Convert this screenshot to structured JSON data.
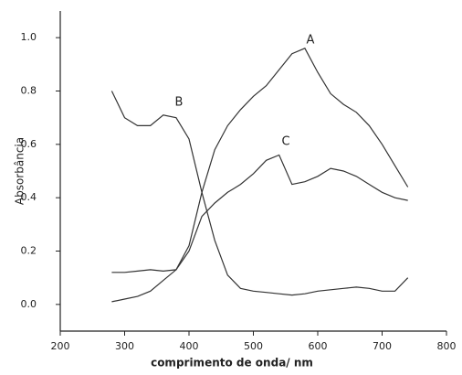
{
  "chart_data": {
    "type": "line",
    "xlabel": "comprimento de onda/ nm",
    "ylabel": "Absorbância",
    "x": [
      280,
      300,
      320,
      340,
      360,
      380,
      400,
      420,
      440,
      460,
      480,
      500,
      520,
      540,
      560,
      580,
      600,
      620,
      640,
      660,
      680,
      700,
      720,
      740
    ],
    "series": [
      {
        "name": "A",
        "color": "#333333",
        "values": [
          0.01,
          0.02,
          0.03,
          0.05,
          0.09,
          0.13,
          0.22,
          0.42,
          0.58,
          0.67,
          0.73,
          0.78,
          0.82,
          0.88,
          0.94,
          0.96,
          0.87,
          0.79,
          0.75,
          0.72,
          0.67,
          0.6,
          0.52,
          0.44
        ]
      },
      {
        "name": "B",
        "color": "#333333",
        "values": [
          0.8,
          0.7,
          0.67,
          0.67,
          0.71,
          0.7,
          0.62,
          0.42,
          0.24,
          0.11,
          0.06,
          0.05,
          0.045,
          0.04,
          0.035,
          0.04,
          0.05,
          0.055,
          0.06,
          0.065,
          0.06,
          0.05,
          0.05,
          0.1
        ]
      },
      {
        "name": "C",
        "color": "#333333",
        "values": [
          0.12,
          0.12,
          0.125,
          0.13,
          0.125,
          0.13,
          0.2,
          0.33,
          0.38,
          0.42,
          0.45,
          0.49,
          0.54,
          0.56,
          0.45,
          0.46,
          0.48,
          0.51,
          0.5,
          0.48,
          0.45,
          0.42,
          0.4,
          0.39
        ]
      }
    ],
    "xlim": [
      200,
      800
    ],
    "xticks": [
      200,
      300,
      400,
      500,
      600,
      700,
      800
    ],
    "ylim": [
      -0.1,
      1.1
    ],
    "yticks": [
      {
        "value": 0,
        "label": "0.0"
      },
      0.2,
      0.4,
      0.6,
      0.8,
      {
        "value": 1,
        "label": "1.0"
      }
    ]
  }
}
